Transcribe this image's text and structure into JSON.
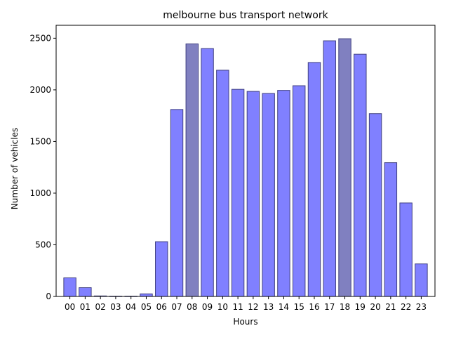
{
  "chart_data": {
    "type": "bar",
    "title": "melbourne bus transport network",
    "xlabel": "Hours",
    "ylabel": "Number of vehicles",
    "ylim": [
      0,
      2625
    ],
    "yticks": [
      0,
      500,
      1000,
      1500,
      2000,
      2500
    ],
    "grid": false,
    "categories": [
      "00",
      "01",
      "02",
      "03",
      "04",
      "05",
      "06",
      "07",
      "08",
      "09",
      "10",
      "11",
      "12",
      "13",
      "14",
      "15",
      "16",
      "17",
      "18",
      "19",
      "20",
      "21",
      "22",
      "23"
    ],
    "values": [
      180,
      85,
      5,
      3,
      3,
      25,
      530,
      1810,
      2445,
      2400,
      2190,
      2005,
      1985,
      1965,
      1995,
      2040,
      2265,
      2475,
      2495,
      2345,
      1770,
      1295,
      905,
      315
    ],
    "colors": {
      "bar": "#8080ff",
      "bar_highlight": "#8080c0",
      "bar_edge": "#404080",
      "axis": "#000000"
    },
    "highlight_categories": [
      "08",
      "18"
    ]
  }
}
